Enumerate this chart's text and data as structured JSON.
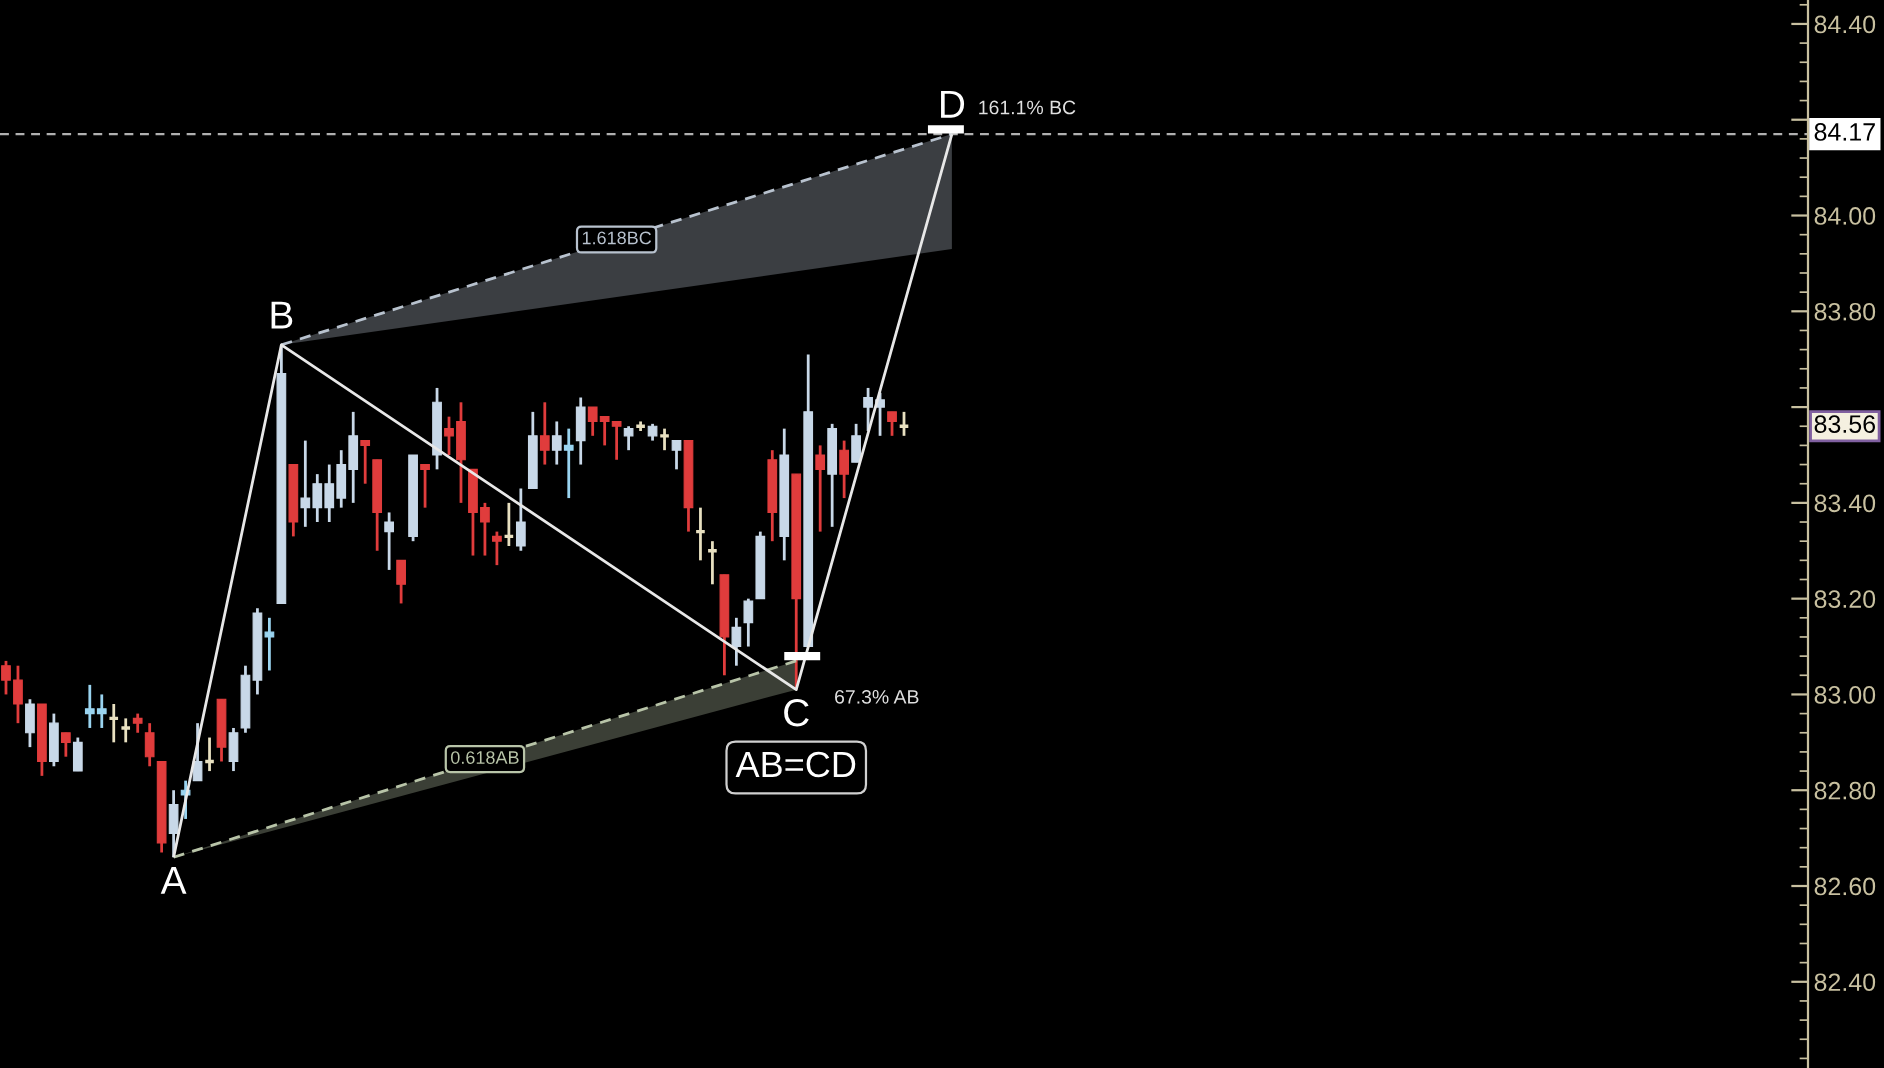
{
  "chart_data": {
    "type": "candlestick",
    "categories": [
      null,
      null,
      null,
      null,
      null,
      null,
      null,
      null,
      null,
      null,
      null,
      null,
      null,
      null,
      null,
      null,
      null,
      null,
      null,
      null,
      null,
      null,
      null,
      null,
      null,
      null,
      null,
      null,
      null,
      null,
      null,
      null,
      null,
      null,
      null,
      null,
      null,
      null,
      null,
      null,
      null,
      null,
      null,
      null,
      null,
      null,
      null,
      null,
      null,
      null,
      null,
      null,
      null,
      null,
      null,
      null,
      null,
      null,
      null,
      null,
      null,
      null,
      null,
      null,
      null,
      null,
      null,
      null,
      null,
      null,
      null,
      null,
      null,
      null,
      null,
      null,
      null,
      null,
      null,
      null,
      null,
      null,
      null,
      null,
      null,
      null,
      null,
      null,
      null,
      null,
      null,
      null,
      null,
      null,
      null,
      null,
      null,
      null,
      null,
      null,
      null,
      null,
      null,
      null,
      null,
      null,
      null,
      null,
      null,
      null,
      null,
      null,
      null,
      null,
      null,
      null,
      null,
      null,
      null,
      null,
      null,
      null,
      null,
      null,
      null,
      null,
      null,
      null,
      null,
      null,
      null,
      null,
      null,
      null,
      null,
      null,
      null,
      null,
      null,
      null,
      null,
      null,
      null,
      null,
      null,
      null,
      null,
      null,
      null,
      null,
      null
    ],
    "series": [
      {
        "ohlc": [
          [
            83.06,
            83.07,
            83.0,
            83.03
          ],
          [
            83.03,
            83.06,
            82.94,
            82.98
          ],
          [
            82.92,
            82.99,
            82.89,
            82.98
          ],
          [
            82.98,
            82.98,
            82.83,
            82.86
          ],
          [
            82.86,
            82.96,
            82.85,
            82.94
          ],
          [
            82.92,
            82.92,
            82.87,
            82.9
          ],
          [
            82.84,
            82.91,
            82.84,
            82.9
          ],
          [
            82.96,
            83.02,
            82.93,
            82.97
          ],
          [
            82.96,
            83.0,
            82.93,
            82.97
          ],
          [
            82.95,
            82.98,
            82.9,
            82.95
          ],
          [
            82.93,
            82.95,
            82.9,
            82.93
          ],
          [
            82.95,
            82.96,
            82.92,
            82.94
          ],
          [
            82.92,
            82.94,
            82.85,
            82.87
          ],
          [
            82.86,
            82.86,
            82.67,
            82.69
          ],
          [
            82.71,
            82.8,
            82.66,
            82.77
          ],
          [
            82.79,
            82.82,
            82.74,
            82.8
          ],
          [
            82.82,
            82.94,
            82.82,
            82.86
          ],
          [
            82.86,
            82.91,
            82.84,
            82.86
          ],
          [
            82.99,
            82.99,
            82.86,
            82.89
          ],
          [
            82.86,
            82.93,
            82.84,
            82.92
          ],
          [
            82.93,
            83.06,
            82.92,
            83.04
          ],
          [
            83.03,
            83.18,
            83.0,
            83.17
          ],
          [
            83.12,
            83.16,
            83.05,
            83.13
          ],
          [
            83.19,
            83.73,
            83.19,
            83.67
          ],
          [
            83.48,
            83.48,
            83.33,
            83.36
          ],
          [
            83.39,
            83.53,
            83.35,
            83.41
          ],
          [
            83.39,
            83.46,
            83.36,
            83.44
          ],
          [
            83.39,
            83.48,
            83.36,
            83.44
          ],
          [
            83.41,
            83.51,
            83.39,
            83.48
          ],
          [
            83.47,
            83.59,
            83.4,
            83.54
          ],
          [
            83.53,
            83.53,
            83.44,
            83.52
          ],
          [
            83.49,
            83.49,
            83.3,
            83.38
          ],
          [
            83.34,
            83.38,
            83.26,
            83.36
          ],
          [
            83.28,
            83.28,
            83.19,
            83.23
          ],
          [
            83.33,
            83.5,
            83.32,
            83.5
          ],
          [
            83.48,
            83.48,
            83.39,
            83.47
          ],
          [
            83.5,
            83.64,
            83.47,
            83.61
          ],
          [
            83.555,
            83.58,
            83.5,
            83.54
          ],
          [
            83.57,
            83.61,
            83.4,
            83.49
          ],
          [
            83.47,
            83.47,
            83.29,
            83.38
          ],
          [
            83.39,
            83.4,
            83.29,
            83.36
          ],
          [
            83.33,
            83.34,
            83.27,
            83.32
          ],
          [
            83.33,
            83.4,
            83.31,
            83.33
          ],
          [
            83.31,
            83.43,
            83.3,
            83.36
          ],
          [
            83.43,
            83.59,
            83.43,
            83.54
          ],
          [
            83.54,
            83.61,
            83.48,
            83.51
          ],
          [
            83.51,
            83.57,
            83.48,
            83.54
          ],
          [
            83.51,
            83.555,
            83.41,
            83.52
          ],
          [
            83.53,
            83.62,
            83.48,
            83.6
          ],
          [
            83.6,
            83.6,
            83.54,
            83.57
          ],
          [
            83.58,
            83.58,
            83.52,
            83.57
          ],
          [
            83.57,
            83.57,
            83.49,
            83.56
          ],
          [
            83.54,
            83.56,
            83.51,
            83.555
          ],
          [
            83.56,
            83.57,
            83.55,
            83.56
          ],
          [
            83.54,
            83.565,
            83.53,
            83.56
          ],
          [
            83.54,
            83.555,
            83.51,
            83.54
          ],
          [
            83.51,
            83.53,
            83.47,
            83.53
          ],
          [
            83.53,
            83.53,
            83.34,
            83.39
          ],
          [
            83.34,
            83.39,
            83.28,
            83.34
          ],
          [
            83.3,
            83.32,
            83.23,
            83.3
          ],
          [
            83.25,
            83.25,
            83.04,
            83.12
          ],
          [
            83.1,
            83.16,
            83.06,
            83.14
          ],
          [
            83.15,
            83.2,
            83.1,
            83.195
          ],
          [
            83.2,
            83.34,
            83.2,
            83.33
          ],
          [
            83.49,
            83.51,
            83.32,
            83.38
          ],
          [
            83.33,
            83.555,
            83.28,
            83.5
          ],
          [
            83.46,
            83.46,
            83.01,
            83.2
          ],
          [
            83.1,
            83.71,
            83.1,
            83.59
          ],
          [
            83.5,
            83.52,
            83.34,
            83.47
          ],
          [
            83.46,
            83.565,
            83.35,
            83.555
          ],
          [
            83.51,
            83.53,
            83.41,
            83.46
          ],
          [
            83.485,
            83.565,
            83.485,
            83.54
          ],
          [
            83.6,
            83.64,
            83.55,
            83.62
          ],
          [
            83.6,
            83.63,
            83.54,
            83.615
          ],
          [
            83.59,
            83.59,
            83.54,
            83.57
          ],
          [
            83.56,
            83.59,
            83.54,
            83.56
          ],
          null,
          null,
          null,
          null,
          null,
          null,
          null,
          null,
          null,
          null,
          null,
          null,
          null,
          null,
          null,
          null,
          null,
          null,
          null,
          null,
          null,
          null,
          null,
          null,
          null,
          null,
          null,
          null,
          null,
          null,
          null,
          null,
          null,
          null,
          null,
          null,
          null,
          null,
          null,
          null,
          null,
          null,
          null,
          null,
          null,
          null,
          null,
          null,
          null,
          null,
          null,
          null,
          null,
          null,
          null,
          null,
          null,
          null,
          null,
          null,
          null,
          null,
          null,
          null,
          null,
          null,
          null,
          null,
          null,
          null,
          null,
          null,
          null,
          null,
          null
        ],
        "colors": [
          "#e03c3c",
          "#e03c3c",
          "#c8d8e8",
          "#e03c3c",
          "#c8d8e8",
          "#e03c3c",
          "#c8d8e8",
          "#9ad4f0",
          "#9ad4f0",
          "#e8e0c0",
          "#e8e0c0",
          "#e03c3c",
          "#e03c3c",
          "#e03c3c",
          "#c8d8e8",
          "#9ad4f0",
          "#c8d8e8",
          "#e8e0c0",
          "#e03c3c",
          "#c8d8e8",
          "#c8d8e8",
          "#c8d8e8",
          "#9ad4f0",
          "#c8d8e8",
          "#e03c3c",
          "#c8d8e8",
          "#c8d8e8",
          "#c8d8e8",
          "#c8d8e8",
          "#c8d8e8",
          "#e03c3c",
          "#e03c3c",
          "#c8d8e8",
          "#e03c3c",
          "#c8d8e8",
          "#e03c3c",
          "#c8d8e8",
          "#e03c3c",
          "#e03c3c",
          "#e03c3c",
          "#e03c3c",
          "#e03c3c",
          "#e8e0c0",
          "#c8d8e8",
          "#c8d8e8",
          "#e03c3c",
          "#c8d8e8",
          "#9ad4f0",
          "#c8d8e8",
          "#e03c3c",
          "#e03c3c",
          "#e03c3c",
          "#c8d8e8",
          "#e8e0c0",
          "#c8d8e8",
          "#e8e0c0",
          "#c8d8e8",
          "#e03c3c",
          "#e8e0c0",
          "#e8e0c0",
          "#e03c3c",
          "#c8d8e8",
          "#c8d8e8",
          "#c8d8e8",
          "#e03c3c",
          "#c8d8e8",
          "#e03c3c",
          "#c8d8e8",
          "#e03c3c",
          "#c8d8e8",
          "#e03c3c",
          "#c8d8e8",
          "#c8d8e8",
          "#c8d8e8",
          "#e03c3c",
          "#e8e0c0",
          null,
          null,
          null,
          null,
          null,
          null,
          null,
          null,
          null,
          null,
          null,
          null,
          null,
          null,
          null,
          null,
          null,
          null,
          null,
          null,
          null,
          null,
          null,
          null,
          null,
          null,
          null,
          null,
          null,
          null,
          null,
          null,
          null,
          null,
          null,
          null,
          null,
          null,
          null,
          null,
          null,
          null,
          null,
          null,
          null,
          null,
          null,
          null,
          null,
          null,
          null,
          null,
          null,
          null,
          null,
          null,
          null,
          null,
          null,
          null,
          null,
          null,
          null,
          null,
          null,
          null,
          null,
          null,
          null,
          null,
          null,
          null,
          null,
          null,
          null
        ]
      },
      {
        "type": "line",
        "name": "1.618BC",
        "color": "#b8c2ce",
        "line_style": "dashed",
        "values": [
          null,
          null,
          null,
          null,
          null,
          null,
          null,
          null,
          null,
          null,
          null,
          null,
          null,
          null,
          null,
          null,
          null,
          null,
          null,
          null,
          null,
          null,
          null,
          83.73,
          null,
          null,
          null,
          null,
          null,
          null,
          null,
          null,
          null,
          null,
          null,
          null,
          null,
          null,
          null,
          null,
          null,
          null,
          null,
          null,
          null,
          null,
          null,
          null,
          null,
          null,
          null,
          null,
          null,
          null,
          null,
          null,
          null,
          null,
          null,
          null,
          null,
          null,
          null,
          null,
          null,
          null,
          null,
          null,
          null,
          null,
          null,
          null,
          null,
          null,
          null,
          null,
          null,
          null,
          null,
          84.17,
          null,
          null,
          null,
          null,
          null,
          null,
          null,
          null,
          null,
          null,
          null,
          null,
          null,
          null,
          null,
          null,
          null,
          null,
          null,
          null,
          null,
          null,
          null,
          null,
          null,
          null,
          null,
          null,
          null,
          null,
          null,
          null,
          null,
          null,
          null,
          null,
          null,
          null,
          null,
          null,
          null,
          null,
          null,
          null,
          null,
          null,
          null,
          null,
          null,
          null,
          null,
          null,
          null,
          null,
          null,
          null,
          null,
          null,
          null,
          null,
          null,
          null,
          null,
          null,
          null,
          null,
          null,
          null,
          null,
          null,
          null
        ],
        "lower": [
          null,
          null,
          null,
          null,
          null,
          null,
          null,
          null,
          null,
          null,
          null,
          null,
          null,
          null,
          null,
          null,
          null,
          null,
          null,
          null,
          null,
          null,
          null,
          83.73,
          null,
          null,
          null,
          null,
          null,
          null,
          null,
          null,
          null,
          null,
          null,
          null,
          null,
          null,
          null,
          null,
          null,
          null,
          null,
          null,
          null,
          null,
          null,
          null,
          null,
          null,
          null,
          null,
          null,
          null,
          null,
          null,
          null,
          null,
          null,
          null,
          null,
          null,
          null,
          null,
          null,
          null,
          null,
          null,
          null,
          null,
          null,
          null,
          null,
          null,
          null,
          null,
          null,
          null,
          null,
          83.93,
          null,
          null,
          null,
          null,
          null,
          null,
          null,
          null,
          null,
          null,
          null,
          null,
          null,
          null,
          null,
          null,
          null,
          null,
          null,
          null,
          null,
          null,
          null,
          null,
          null,
          null,
          null,
          null,
          null,
          null,
          null,
          null,
          null,
          null,
          null,
          null,
          null,
          null,
          null,
          null,
          null,
          null,
          null,
          null,
          null,
          null,
          null,
          null,
          null,
          null,
          null,
          null,
          null,
          null,
          null,
          null,
          null,
          null,
          null,
          null,
          null,
          null,
          null,
          null,
          null,
          null,
          null,
          null,
          null,
          null,
          null
        ],
        "upper": [
          null,
          null,
          null,
          null,
          null,
          null,
          null,
          null,
          null,
          null,
          null,
          null,
          null,
          null,
          null,
          null,
          null,
          null,
          null,
          null,
          null,
          null,
          null,
          83.73,
          null,
          null,
          null,
          null,
          null,
          null,
          null,
          null,
          null,
          null,
          null,
          null,
          null,
          null,
          null,
          null,
          null,
          null,
          null,
          null,
          null,
          null,
          null,
          null,
          null,
          null,
          null,
          null,
          null,
          null,
          null,
          null,
          null,
          null,
          null,
          null,
          null,
          null,
          null,
          null,
          null,
          null,
          null,
          null,
          null,
          null,
          null,
          null,
          null,
          null,
          null,
          null,
          null,
          null,
          null,
          84.17,
          null,
          null,
          null,
          null,
          null,
          null,
          null,
          null,
          null,
          null,
          null,
          null,
          null,
          null,
          null,
          null,
          null,
          null,
          null,
          null,
          null,
          null,
          null,
          null,
          null,
          null,
          null,
          null,
          null,
          null,
          null,
          null,
          null,
          null,
          null,
          null,
          null,
          null,
          null,
          null,
          null,
          null,
          null,
          null,
          null,
          null,
          null,
          null,
          null,
          null,
          null,
          null,
          null,
          null,
          null,
          null,
          null,
          null,
          null,
          null,
          null,
          null,
          null,
          null,
          null,
          null,
          null,
          null,
          null,
          null,
          null
        ]
      },
      {
        "type": "line",
        "name": "0.618AB",
        "color": "#b8c4a8",
        "line_style": "dashed",
        "values": [
          null,
          null,
          null,
          null,
          null,
          null,
          null,
          null,
          null,
          null,
          null,
          null,
          null,
          null,
          82.66,
          null,
          null,
          null,
          null,
          null,
          null,
          null,
          null,
          null,
          null,
          null,
          null,
          null,
          null,
          null,
          null,
          null,
          null,
          null,
          null,
          null,
          null,
          null,
          null,
          null,
          null,
          null,
          null,
          null,
          null,
          null,
          null,
          null,
          null,
          null,
          null,
          null,
          null,
          null,
          null,
          null,
          null,
          null,
          null,
          null,
          null,
          null,
          null,
          null,
          null,
          null,
          83.07,
          null,
          null,
          null,
          null,
          null,
          null,
          null,
          null,
          null,
          null,
          null,
          null,
          null,
          null,
          null,
          null,
          null,
          null,
          null,
          null,
          null,
          null,
          null,
          null,
          null,
          null,
          null,
          null,
          null,
          null,
          null,
          null,
          null,
          null,
          null,
          null,
          null,
          null,
          null,
          null,
          null,
          null,
          null,
          null,
          null,
          null,
          null,
          null,
          null,
          null,
          null,
          null,
          null,
          null,
          null,
          null,
          null,
          null,
          null,
          null,
          null,
          null,
          null,
          null,
          null,
          null,
          null,
          null,
          null,
          null,
          null,
          null,
          null,
          null,
          null,
          null,
          null,
          null,
          null,
          null,
          null,
          null,
          null,
          null
        ],
        "lower": [
          null,
          null,
          null,
          null,
          null,
          null,
          null,
          null,
          null,
          null,
          null,
          null,
          null,
          null,
          82.66,
          null,
          null,
          null,
          null,
          null,
          null,
          null,
          null,
          null,
          null,
          null,
          null,
          null,
          null,
          null,
          null,
          null,
          null,
          null,
          null,
          null,
          null,
          null,
          null,
          null,
          null,
          null,
          null,
          null,
          null,
          null,
          null,
          null,
          null,
          null,
          null,
          null,
          null,
          null,
          null,
          null,
          null,
          null,
          null,
          null,
          null,
          null,
          null,
          null,
          null,
          null,
          83.01,
          null,
          null,
          null,
          null,
          null,
          null,
          null,
          null,
          null,
          null,
          null,
          null,
          null,
          null,
          null,
          null,
          null,
          null,
          null,
          null,
          null,
          null,
          null,
          null,
          null,
          null,
          null,
          null,
          null,
          null,
          null,
          null,
          null,
          null,
          null,
          null,
          null,
          null,
          null,
          null,
          null,
          null,
          null,
          null,
          null,
          null,
          null,
          null,
          null,
          null,
          null,
          null,
          null,
          null,
          null,
          null,
          null,
          null,
          null,
          null,
          null,
          null,
          null,
          null,
          null,
          null,
          null,
          null,
          null,
          null,
          null,
          null,
          null,
          null,
          null,
          null,
          null,
          null,
          null,
          null,
          null,
          null,
          null,
          null
        ],
        "upper": [
          null,
          null,
          null,
          null,
          null,
          null,
          null,
          null,
          null,
          null,
          null,
          null,
          null,
          null,
          82.66,
          null,
          null,
          null,
          null,
          null,
          null,
          null,
          null,
          null,
          null,
          null,
          null,
          null,
          null,
          null,
          null,
          null,
          null,
          null,
          null,
          null,
          null,
          null,
          null,
          null,
          null,
          null,
          null,
          null,
          null,
          null,
          null,
          null,
          null,
          null,
          null,
          null,
          null,
          null,
          null,
          null,
          null,
          null,
          null,
          null,
          null,
          null,
          null,
          null,
          null,
          null,
          83.07,
          null,
          null,
          null,
          null,
          null,
          null,
          null,
          null,
          null,
          null,
          null,
          null,
          null,
          null,
          null,
          null,
          null,
          null,
          null,
          null,
          null,
          null,
          null,
          null,
          null,
          null,
          null,
          null,
          null,
          null,
          null,
          null,
          null,
          null,
          null,
          null,
          null,
          null,
          null,
          null,
          null,
          null,
          null,
          null,
          null,
          null,
          null,
          null,
          null,
          null,
          null,
          null,
          null,
          null,
          null,
          null,
          null,
          null,
          null,
          null,
          null,
          null,
          null,
          null,
          null,
          null,
          null,
          null,
          null,
          null,
          null,
          null,
          null,
          null,
          null,
          null,
          null,
          null,
          null,
          null,
          null,
          null,
          null,
          null
        ]
      },
      {
        "type": "line",
        "name": "AB=CD",
        "color": "#e8e8e8",
        "line_style": "solid",
        "values": [
          null,
          null,
          null,
          null,
          null,
          null,
          null,
          null,
          null,
          null,
          null,
          null,
          null,
          null,
          82.66,
          null,
          null,
          null,
          null,
          null,
          null,
          null,
          null,
          83.73,
          null,
          null,
          null,
          null,
          null,
          null,
          null,
          null,
          null,
          null,
          null,
          null,
          null,
          null,
          null,
          null,
          null,
          null,
          null,
          null,
          null,
          null,
          null,
          null,
          null,
          null,
          null,
          null,
          null,
          null,
          null,
          null,
          null,
          null,
          null,
          null,
          null,
          null,
          null,
          null,
          null,
          null,
          83.01,
          null,
          null,
          null,
          null,
          null,
          null,
          null,
          null,
          null,
          null,
          null,
          null,
          84.17,
          null,
          null,
          null,
          null,
          null,
          null,
          null,
          null,
          null,
          null,
          null,
          null,
          null,
          null,
          null,
          null,
          null,
          null,
          null,
          null,
          null,
          null,
          null,
          null,
          null,
          null,
          null,
          null,
          null,
          null,
          null,
          null,
          null,
          null,
          null,
          null,
          null,
          null,
          null,
          null,
          null,
          null,
          null,
          null,
          null,
          null,
          null,
          null,
          null,
          null,
          null,
          null,
          null,
          null,
          null,
          null,
          null,
          null,
          null,
          null,
          null,
          null,
          null,
          null,
          null,
          null,
          null,
          null,
          null,
          null,
          null
        ],
        "value_labels": [
          null,
          null,
          null,
          null,
          null,
          null,
          null,
          null,
          null,
          null,
          null,
          null,
          null,
          null,
          "A",
          null,
          null,
          null,
          null,
          null,
          null,
          null,
          null,
          "B",
          null,
          null,
          null,
          null,
          null,
          null,
          null,
          null,
          null,
          null,
          null,
          null,
          null,
          null,
          null,
          null,
          null,
          null,
          null,
          null,
          null,
          null,
          null,
          null,
          null,
          null,
          null,
          null,
          null,
          null,
          null,
          null,
          null,
          null,
          null,
          null,
          null,
          null,
          null,
          null,
          null,
          null,
          "C",
          null,
          null,
          null,
          null,
          null,
          null,
          null,
          null,
          null,
          null,
          null,
          null,
          "D",
          null,
          null,
          null,
          null,
          null,
          null,
          null,
          null,
          null,
          null,
          null,
          null,
          null,
          null,
          null,
          null,
          null,
          null,
          null,
          null,
          null,
          null,
          null,
          null,
          null,
          null,
          null,
          null,
          null,
          null,
          null,
          null,
          null,
          null,
          null,
          null,
          null,
          null,
          null,
          null,
          null,
          null,
          null,
          null,
          null,
          null,
          null,
          null,
          null,
          null,
          null,
          null,
          null,
          null,
          null,
          null,
          null,
          null,
          null,
          null,
          null,
          null,
          null,
          null,
          null,
          null,
          null,
          null,
          null,
          null,
          null
        ]
      },
      {
        "type": "line",
        "name": "67.3% AB",
        "color": "#ffffff",
        "line_style": "solid",
        "values": [
          null,
          null,
          null,
          null,
          null,
          null,
          null,
          null,
          null,
          null,
          null,
          null,
          null,
          null,
          null,
          null,
          null,
          null,
          null,
          null,
          null,
          null,
          null,
          null,
          null,
          null,
          null,
          null,
          null,
          null,
          null,
          null,
          null,
          null,
          null,
          null,
          null,
          null,
          null,
          null,
          null,
          null,
          null,
          null,
          null,
          null,
          null,
          null,
          null,
          null,
          null,
          null,
          null,
          null,
          null,
          null,
          null,
          null,
          null,
          null,
          null,
          null,
          null,
          null,
          null,
          83.08,
          83.08,
          83.08,
          83.08,
          null,
          null,
          null,
          null,
          null,
          null,
          null,
          null,
          null,
          null,
          null,
          null,
          null,
          null,
          null,
          null,
          null,
          null,
          null,
          null,
          null,
          null,
          null,
          null,
          null,
          null,
          null,
          null,
          null,
          null,
          null,
          null,
          null,
          null,
          null,
          null,
          null,
          null,
          null,
          null,
          null,
          null,
          null,
          null,
          null,
          null,
          null,
          null,
          null,
          null,
          null,
          null,
          null,
          null,
          null,
          null,
          null,
          null,
          null,
          null,
          null,
          null,
          null,
          null,
          null,
          null,
          null,
          null,
          null,
          null,
          null,
          null,
          null,
          null,
          null,
          null,
          null,
          null,
          null,
          null,
          null,
          null
        ]
      },
      {
        "type": "line",
        "name": "161.1% BC",
        "color": "#ffffff",
        "line_style": "solid",
        "values": [
          null,
          null,
          null,
          null,
          null,
          null,
          null,
          null,
          null,
          null,
          null,
          null,
          null,
          null,
          null,
          null,
          null,
          null,
          null,
          null,
          null,
          null,
          null,
          null,
          null,
          null,
          null,
          null,
          null,
          null,
          null,
          null,
          null,
          null,
          null,
          null,
          null,
          null,
          null,
          null,
          null,
          null,
          null,
          null,
          null,
          null,
          null,
          null,
          null,
          null,
          null,
          null,
          null,
          null,
          null,
          null,
          null,
          null,
          null,
          null,
          null,
          null,
          null,
          null,
          null,
          null,
          null,
          null,
          null,
          null,
          null,
          null,
          null,
          null,
          null,
          null,
          null,
          84.18,
          84.18,
          84.18,
          84.18,
          null,
          null,
          null,
          null,
          null,
          null,
          null,
          null,
          null,
          null,
          null,
          null,
          null,
          null,
          null,
          null,
          null,
          null,
          null,
          null,
          null,
          null,
          null,
          null,
          null,
          null,
          null,
          null,
          null,
          null,
          null,
          null,
          null,
          null,
          null,
          null,
          null,
          null,
          null,
          null,
          null,
          null,
          null,
          null,
          null,
          null,
          null,
          null,
          null,
          null,
          null,
          null,
          null,
          null,
          null,
          null,
          null,
          null,
          null,
          null,
          null,
          null,
          null,
          null,
          null,
          null,
          null,
          null,
          null,
          null
        ]
      }
    ],
    "ylim": [
      82.22,
      84.45
    ],
    "yticks": [
      {
        "value": 82.4,
        "label": "82.40"
      },
      {
        "value": 82.6,
        "label": "82.60"
      },
      {
        "value": 82.8,
        "label": "82.80"
      },
      {
        "value": 83.0,
        "label": "83.00"
      },
      {
        "value": 83.2,
        "label": "83.20"
      },
      {
        "value": 83.4,
        "label": "83.40"
      },
      {
        "value": 83.6,
        "label": null
      },
      {
        "value": 83.8,
        "label": "83.80"
      },
      {
        "value": 84.0,
        "label": "84.00"
      },
      {
        "value": 84.2,
        "label": null
      },
      {
        "value": 84.4,
        "label": "84.40"
      }
    ],
    "ref_lines": [
      {
        "axis": "y",
        "value": 84.17,
        "label": "84.17",
        "color": "#b0b0b0",
        "line_style": "dashed"
      }
    ],
    "annotations": [
      "83.56"
    ],
    "tick_labels": "y"
  }
}
